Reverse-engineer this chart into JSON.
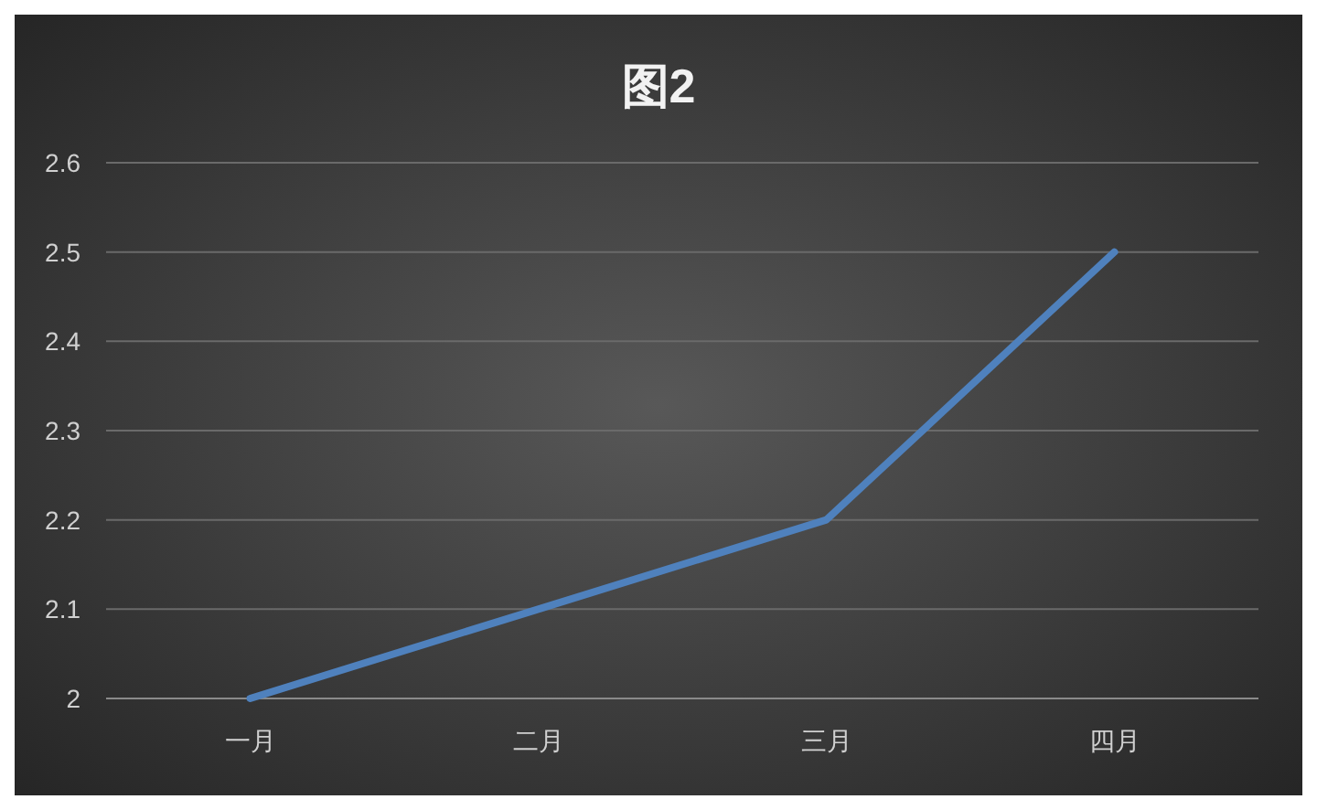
{
  "chart_data": {
    "type": "line",
    "title": "图2",
    "categories": [
      "一月",
      "二月",
      "三月",
      "四月"
    ],
    "series": [
      {
        "color": "#4f81bd",
        "values": [
          2,
          2.1,
          2.2,
          2.5
        ]
      }
    ],
    "ylim": [
      2,
      2.6
    ],
    "yticks": [
      2,
      2.1,
      2.2,
      2.3,
      2.4,
      2.5,
      2.6
    ],
    "grid": "y",
    "marker": "none"
  }
}
